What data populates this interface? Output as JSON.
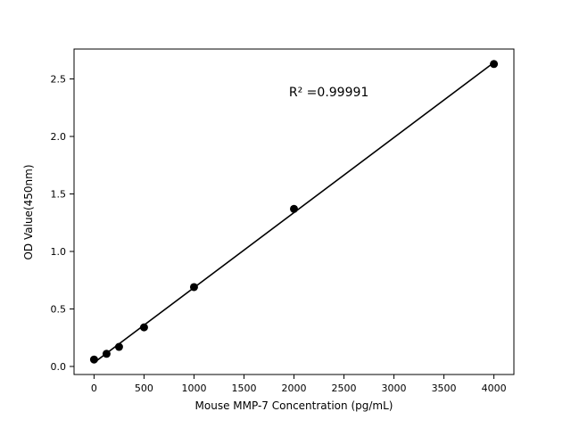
{
  "figure": {
    "background": "#ffffff"
  },
  "chart_data": {
    "type": "scatter",
    "title": "",
    "xlabel": "Mouse MMP-7 Concentration (pg/mL)",
    "ylabel": "OD Value(450nm)",
    "x": [
      0,
      125,
      250,
      500,
      1000,
      2000,
      4000
    ],
    "y": [
      0.06,
      0.11,
      0.17,
      0.34,
      0.69,
      1.37,
      2.63
    ],
    "fit": "linear",
    "annotation": {
      "text": "R² =0.99991",
      "x": 1950,
      "y": 2.38
    },
    "xlim": [
      -200,
      4200
    ],
    "ylim": [
      -0.07,
      2.76
    ],
    "xticks": {
      "values": [
        0,
        500,
        1000,
        1500,
        2000,
        2500,
        3000,
        3500,
        4000
      ],
      "labels": [
        "0",
        "500",
        "1000",
        "1500",
        "2000",
        "2500",
        "3000",
        "3500",
        "4000"
      ]
    },
    "yticks": {
      "values": [
        0,
        0.5,
        1.0,
        1.5,
        2.0,
        2.5
      ],
      "labels": [
        "0.0",
        "0.5",
        "1.0",
        "1.5",
        "2.0",
        "2.5"
      ]
    },
    "marker_color": "#000000",
    "line_color": "#000000",
    "axis_color": "#000000",
    "grid": false,
    "legend": null
  }
}
